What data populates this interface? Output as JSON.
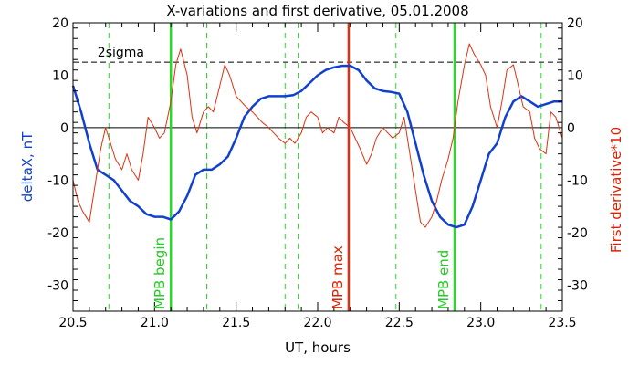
{
  "chart_data": {
    "type": "line",
    "title": "X-variations and first derivative, 05.01.2008",
    "xlabel": "UT, hours",
    "ylabel": "deltaX, nT",
    "ylabel_right": "First derivative*10",
    "xlim": [
      20.5,
      23.5
    ],
    "ylim": [
      -35,
      20
    ],
    "x_ticks": [
      20.5,
      21.0,
      21.5,
      22.0,
      22.5,
      23.0,
      23.5
    ],
    "x_tick_labels": [
      "20.5",
      "21.0",
      "21.5",
      "22.0",
      "22.5",
      "23.0",
      "23.5"
    ],
    "y_ticks": [
      -30,
      -20,
      -10,
      0,
      10,
      20
    ],
    "y_tick_labels": [
      "-30",
      "-20",
      "-10",
      "0",
      "10",
      "20"
    ],
    "grid": false,
    "colors": {
      "deltaX": "#1040d0",
      "derivative": "#e03010",
      "mpb_boundary": "#22dd22",
      "mpb_max": "#e03010",
      "guides": "#22dd22",
      "text_green": "#22cc22",
      "text_red": "#dd2200",
      "text_blue": "#1040d0"
    },
    "threshold": {
      "label": "2sigma",
      "value": 12.5
    },
    "zero_line": 0,
    "markers": [
      {
        "label": "MPB begin",
        "x": 21.1,
        "color": "#22dd22"
      },
      {
        "label": "MPB max",
        "x": 22.19,
        "color": "#e03010"
      },
      {
        "label": "MPB end",
        "x": 22.84,
        "color": "#22dd22"
      }
    ],
    "dashed_guides": [
      20.72,
      21.32,
      21.8,
      21.88,
      22.48,
      23.37
    ],
    "series": [
      {
        "name": "deltaX, nT",
        "axis": "left",
        "x": [
          20.5,
          20.55,
          20.6,
          20.65,
          20.7,
          20.75,
          20.8,
          20.85,
          20.9,
          20.95,
          21.0,
          21.05,
          21.1,
          21.15,
          21.2,
          21.25,
          21.3,
          21.35,
          21.4,
          21.45,
          21.5,
          21.55,
          21.6,
          21.65,
          21.7,
          21.75,
          21.8,
          21.85,
          21.9,
          21.95,
          22.0,
          22.05,
          22.1,
          22.15,
          22.2,
          22.25,
          22.3,
          22.35,
          22.4,
          22.45,
          22.5,
          22.55,
          22.6,
          22.65,
          22.7,
          22.75,
          22.8,
          22.85,
          22.9,
          22.95,
          23.0,
          23.05,
          23.1,
          23.15,
          23.2,
          23.25,
          23.3,
          23.35,
          23.4,
          23.45,
          23.5
        ],
        "values": [
          8,
          3,
          -3,
          -8,
          -9,
          -10,
          -12,
          -14,
          -15,
          -16.5,
          -17,
          -17,
          -17.5,
          -16,
          -13,
          -9,
          -8,
          -8,
          -7,
          -5.5,
          -2,
          2,
          4,
          5.5,
          6,
          6,
          6,
          6.2,
          7,
          8.5,
          10,
          11,
          11.5,
          11.8,
          11.8,
          11,
          9,
          7.5,
          7,
          6.8,
          6.5,
          3,
          -3,
          -9,
          -14,
          -17,
          -18.5,
          -19,
          -18.5,
          -15,
          -10,
          -5,
          -3,
          2,
          5,
          6,
          5,
          4,
          4.5,
          5,
          5
        ]
      },
      {
        "name": "First derivative*10",
        "axis": "right",
        "x": [
          20.5,
          20.53,
          20.56,
          20.6,
          20.63,
          20.67,
          20.7,
          20.73,
          20.76,
          20.8,
          20.83,
          20.86,
          20.9,
          20.93,
          20.96,
          21.0,
          21.03,
          21.06,
          21.1,
          21.13,
          21.16,
          21.2,
          21.23,
          21.26,
          21.3,
          21.33,
          21.36,
          21.4,
          21.43,
          21.46,
          21.5,
          21.53,
          21.56,
          21.6,
          21.63,
          21.66,
          21.7,
          21.73,
          21.76,
          21.8,
          21.83,
          21.86,
          21.9,
          21.93,
          21.96,
          22.0,
          22.03,
          22.06,
          22.1,
          22.13,
          22.16,
          22.2,
          22.23,
          22.26,
          22.3,
          22.33,
          22.36,
          22.4,
          22.43,
          22.46,
          22.5,
          22.53,
          22.56,
          22.6,
          22.63,
          22.66,
          22.7,
          22.73,
          22.76,
          22.8,
          22.83,
          22.86,
          22.9,
          22.93,
          22.96,
          23.0,
          23.03,
          23.06,
          23.1,
          23.13,
          23.16,
          23.2,
          23.23,
          23.26,
          23.3,
          23.33,
          23.36,
          23.4,
          23.43,
          23.46,
          23.5
        ],
        "values": [
          -10,
          -14,
          -16,
          -18,
          -12,
          -4,
          0,
          -3,
          -6,
          -8,
          -5,
          -8,
          -10,
          -5,
          2,
          0,
          -2,
          -1,
          5,
          12,
          15,
          10,
          2,
          -1,
          3,
          4,
          3,
          8,
          12,
          10,
          6,
          5,
          4,
          3,
          2,
          1,
          0,
          -1,
          -2,
          -3,
          -2,
          -3,
          -1,
          2,
          3,
          2,
          -1,
          0,
          -1,
          2,
          1,
          0,
          -2,
          -4,
          -7,
          -5,
          -2,
          0,
          -1,
          -2,
          -1,
          2,
          -4,
          -12,
          -18,
          -19,
          -17,
          -14,
          -10,
          -6,
          -2,
          5,
          12,
          16,
          14,
          12,
          10,
          4,
          0,
          5,
          11,
          12,
          8,
          4,
          3,
          -2,
          -4,
          -5,
          3,
          2,
          -2
        ]
      }
    ]
  }
}
